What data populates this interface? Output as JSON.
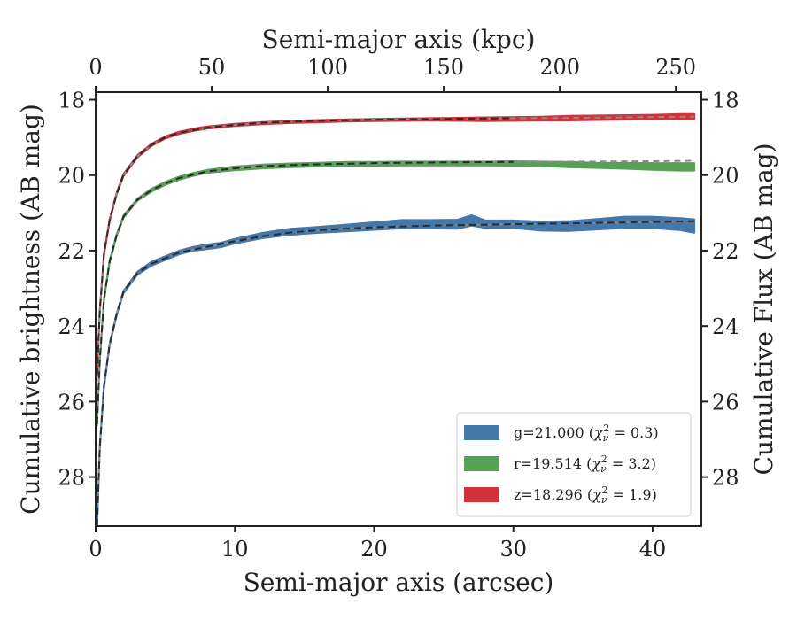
{
  "chart_data": {
    "type": "line",
    "title": "",
    "xlabel": "Semi-major axis (arcsec)",
    "ylabel": "Cumulative brightness (AB mag)",
    "x2label": "Semi-major axis (kpc)",
    "y2label": "Cumulative Flux (AB mag)",
    "xlim": [
      0,
      43.5
    ],
    "ylim": [
      29.3,
      17.8
    ],
    "y_inverted": true,
    "x2lim": [
      0,
      261
    ],
    "xticks": [
      0,
      10,
      20,
      30,
      40
    ],
    "yticks": [
      18,
      20,
      22,
      24,
      26,
      28
    ],
    "x2ticks": [
      0,
      50,
      100,
      150,
      200,
      250
    ],
    "grid": false,
    "legend": {
      "placement": "lower-right",
      "entries": [
        {
          "label_main": "g=21.000 (",
          "chi": "χ",
          "sub": "ν",
          "sup": "2",
          "label_tail": " = 0.3)",
          "color": "#4477AA"
        },
        {
          "label_main": "r=19.514 (",
          "chi": "χ",
          "sub": "ν",
          "sup": "2",
          "label_tail": " = 3.2)",
          "color": "#55A155"
        },
        {
          "label_main": "z=18.296 (",
          "chi": "χ",
          "sub": "ν",
          "sup": "2",
          "label_tail": " = 1.9)",
          "color": "#D0343A"
        }
      ]
    },
    "series": [
      {
        "name": "g=21.000 (χν² = 0.3)",
        "band": "g",
        "color": "#4477AA",
        "x": [
          0.1,
          0.3,
          0.6,
          1,
          1.5,
          2,
          3,
          4,
          5,
          6,
          7,
          8,
          9,
          10,
          12,
          14,
          16,
          18,
          20,
          22,
          24,
          26,
          27,
          28,
          30,
          32,
          34,
          36,
          38,
          40,
          42,
          43
        ],
        "y": [
          29.3,
          27.2,
          25.6,
          24.5,
          23.7,
          23.1,
          22.6,
          22.35,
          22.2,
          22.05,
          21.95,
          21.9,
          21.85,
          21.75,
          21.6,
          21.5,
          21.45,
          21.4,
          21.35,
          21.3,
          21.3,
          21.3,
          21.2,
          21.3,
          21.3,
          21.35,
          21.35,
          21.3,
          21.25,
          21.25,
          21.3,
          21.35
        ],
        "halfwidth": [
          0.03,
          0.03,
          0.03,
          0.03,
          0.03,
          0.03,
          0.04,
          0.05,
          0.05,
          0.05,
          0.05,
          0.06,
          0.06,
          0.06,
          0.07,
          0.08,
          0.08,
          0.09,
          0.1,
          0.11,
          0.11,
          0.12,
          0.14,
          0.1,
          0.1,
          0.12,
          0.13,
          0.14,
          0.15,
          0.15,
          0.16,
          0.18
        ],
        "model_x": [
          0.1,
          0.3,
          0.6,
          1,
          1.5,
          2,
          3,
          4,
          5,
          6,
          8,
          10,
          12,
          14,
          16,
          20,
          25,
          30,
          35,
          40,
          43
        ],
        "model_y": [
          29.3,
          27.2,
          25.6,
          24.5,
          23.7,
          23.1,
          22.6,
          22.35,
          22.2,
          22.05,
          21.9,
          21.75,
          21.62,
          21.52,
          21.46,
          21.38,
          21.33,
          21.3,
          21.27,
          21.24,
          21.22
        ]
      },
      {
        "name": "r=19.514 (χν² = 3.2)",
        "band": "r",
        "color": "#55A155",
        "x": [
          0.1,
          0.3,
          0.6,
          1,
          1.5,
          2,
          3,
          4,
          5,
          6,
          7,
          8,
          10,
          12,
          14,
          16,
          18,
          20,
          22,
          24,
          26,
          28,
          30,
          32,
          34,
          36,
          38,
          40,
          42,
          43
        ],
        "y": [
          26.6,
          24.9,
          23.3,
          22.3,
          21.6,
          21.1,
          20.65,
          20.4,
          20.22,
          20.08,
          19.98,
          19.9,
          19.82,
          19.77,
          19.74,
          19.72,
          19.7,
          19.7,
          19.69,
          19.69,
          19.69,
          19.69,
          19.69,
          19.7,
          19.72,
          19.74,
          19.75,
          19.77,
          19.78,
          19.78
        ],
        "halfwidth": [
          0.03,
          0.03,
          0.03,
          0.03,
          0.03,
          0.03,
          0.03,
          0.04,
          0.04,
          0.04,
          0.04,
          0.04,
          0.05,
          0.05,
          0.05,
          0.05,
          0.05,
          0.05,
          0.05,
          0.05,
          0.05,
          0.05,
          0.06,
          0.06,
          0.07,
          0.07,
          0.08,
          0.09,
          0.1,
          0.1
        ],
        "model_x": [
          0.1,
          0.3,
          0.6,
          1,
          1.5,
          2,
          3,
          4,
          5,
          6,
          8,
          10,
          12,
          15,
          20,
          25,
          30,
          35,
          40,
          43
        ],
        "model_y": [
          26.6,
          24.9,
          23.3,
          22.3,
          21.6,
          21.1,
          20.65,
          20.4,
          20.22,
          20.08,
          19.9,
          19.82,
          19.76,
          19.72,
          19.68,
          19.66,
          19.65,
          19.64,
          19.63,
          19.62
        ]
      },
      {
        "name": "z=18.296 (χν² = 1.9)",
        "band": "z",
        "color": "#D0343A",
        "x": [
          0.1,
          0.3,
          0.6,
          1,
          1.5,
          2,
          3,
          4,
          5,
          6,
          7,
          8,
          10,
          12,
          14,
          16,
          18,
          20,
          22,
          24,
          26,
          28,
          30,
          32,
          34,
          36,
          38,
          40,
          42,
          43
        ],
        "y": [
          25.3,
          23.6,
          22.1,
          21.2,
          20.5,
          20.0,
          19.5,
          19.2,
          19.0,
          18.88,
          18.8,
          18.74,
          18.67,
          18.62,
          18.59,
          18.57,
          18.55,
          18.54,
          18.53,
          18.52,
          18.52,
          18.52,
          18.51,
          18.5,
          18.49,
          18.48,
          18.47,
          18.46,
          18.45,
          18.45
        ],
        "halfwidth": [
          0.03,
          0.03,
          0.03,
          0.03,
          0.03,
          0.03,
          0.03,
          0.03,
          0.03,
          0.03,
          0.03,
          0.03,
          0.03,
          0.03,
          0.03,
          0.03,
          0.03,
          0.03,
          0.03,
          0.03,
          0.04,
          0.05,
          0.05,
          0.05,
          0.06,
          0.06,
          0.06,
          0.06,
          0.07,
          0.07
        ],
        "model_x": [
          0.1,
          0.3,
          0.6,
          1,
          1.5,
          2,
          3,
          4,
          5,
          6,
          8,
          10,
          12,
          15,
          20,
          25,
          30,
          35,
          40,
          43
        ],
        "model_y": [
          25.3,
          23.6,
          22.1,
          21.2,
          20.5,
          20.0,
          19.5,
          19.2,
          19.0,
          18.88,
          18.74,
          18.67,
          18.61,
          18.57,
          18.53,
          18.51,
          18.49,
          18.48,
          18.46,
          18.45
        ]
      }
    ]
  }
}
